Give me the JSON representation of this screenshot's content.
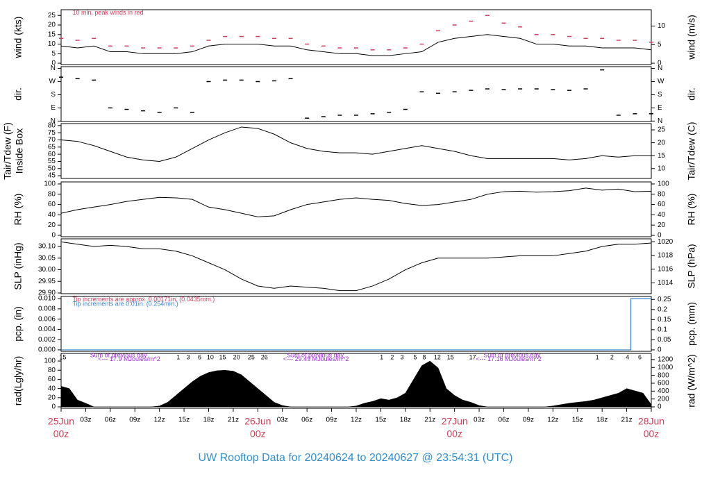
{
  "title": "UW Rooftop Data for 20240624  to  20240627 @ 23:54:31  (UTC)",
  "chart_data": [
    {
      "type": "line",
      "ylabel": [
        "wind (kts)"
      ],
      "y2label": "wind (m/s)",
      "xlim": [
        0,
        72
      ],
      "ylim": [
        -0.7,
        28
      ],
      "yticks": [
        0,
        5,
        10,
        15,
        20,
        25
      ],
      "y2lim": [
        -0.36,
        14.4
      ],
      "y2ticks": [
        0,
        5,
        10
      ],
      "x": [
        0,
        2,
        4,
        6,
        8,
        10,
        12,
        14,
        16,
        18,
        20,
        22,
        24,
        26,
        28,
        30,
        32,
        34,
        36,
        38,
        40,
        42,
        44,
        46,
        48,
        50,
        52,
        54,
        56,
        58,
        60,
        62,
        64,
        66,
        68,
        70,
        72
      ],
      "series": [
        {
          "style": "dash",
          "color": "#d04060",
          "values": [
            13,
            12,
            13,
            9,
            9,
            8,
            8,
            8,
            9,
            12,
            14,
            14,
            14,
            13,
            13,
            10,
            9,
            8,
            8,
            7,
            7,
            8,
            10,
            17,
            20,
            22,
            25,
            21,
            19,
            15,
            15,
            14,
            13,
            13,
            12,
            12,
            11
          ]
        },
        {
          "style": "line",
          "color": "#000000",
          "values": [
            9,
            8,
            9,
            6,
            6,
            5,
            5,
            5,
            6,
            9,
            10,
            10,
            10,
            9,
            9,
            7,
            6,
            5,
            5,
            4,
            4,
            5,
            6,
            11,
            13,
            14,
            15,
            14,
            13,
            10,
            10,
            9,
            9,
            8,
            8,
            8,
            7
          ]
        }
      ],
      "annotations": [
        {
          "text": "10 min. peak winds in red",
          "color": "#d04060",
          "x": 1.4,
          "y": 26.3
        }
      ]
    },
    {
      "type": "scatter",
      "ylabel": [
        "dir."
      ],
      "y2label": "dir.",
      "xlim": [
        0,
        72
      ],
      "ylim": [
        -3,
        372
      ],
      "yticks": [
        {
          "value": 0,
          "label": "N"
        },
        {
          "value": 90,
          "label": "E"
        },
        {
          "value": 180,
          "label": "S"
        },
        {
          "value": 270,
          "label": "W"
        },
        {
          "value": 360,
          "label": "N"
        }
      ],
      "y2lim": [
        -3,
        372
      ],
      "y2ticks": [
        {
          "value": 0,
          "label": "N"
        },
        {
          "value": 90,
          "label": "E"
        },
        {
          "value": 180,
          "label": "S"
        },
        {
          "value": 270,
          "label": "W"
        },
        {
          "value": 360,
          "label": "N"
        }
      ],
      "x": [
        0,
        2,
        4,
        6,
        8,
        10,
        12,
        14,
        16,
        18,
        20,
        22,
        24,
        26,
        28,
        30,
        32,
        34,
        36,
        38,
        40,
        42,
        44,
        46,
        48,
        50,
        52,
        54,
        56,
        58,
        60,
        62,
        64,
        66,
        68,
        70,
        72
      ],
      "series": [
        {
          "style": "dash",
          "color": "#000000",
          "values": [
            300,
            290,
            280,
            90,
            80,
            70,
            60,
            90,
            60,
            270,
            280,
            280,
            270,
            275,
            290,
            20,
            30,
            40,
            40,
            50,
            60,
            80,
            200,
            190,
            200,
            210,
            220,
            215,
            220,
            220,
            215,
            210,
            220,
            350,
            40,
            50,
            50
          ]
        }
      ]
    },
    {
      "type": "line",
      "ylabel": [
        "Tair/Tdew (F)",
        "Inside Box"
      ],
      "y2label": "Tair/Tdew (C)",
      "xlim": [
        0,
        72
      ],
      "ylim": [
        43.1,
        81.4
      ],
      "yticks": [
        45,
        50,
        55,
        60,
        65,
        70,
        75,
        80
      ],
      "y2lim": [
        6.17,
        27.44
      ],
      "y2ticks": [
        10,
        15,
        20,
        25
      ],
      "x": [
        0,
        2,
        4,
        6,
        8,
        10,
        12,
        14,
        16,
        18,
        20,
        22,
        24,
        26,
        28,
        30,
        32,
        34,
        36,
        38,
        40,
        42,
        44,
        46,
        48,
        50,
        52,
        54,
        56,
        58,
        60,
        62,
        64,
        66,
        68,
        70,
        72
      ],
      "series": [
        {
          "style": "line",
          "color": "#000000",
          "values": [
            70,
            69,
            66,
            62,
            58,
            56,
            55,
            58,
            64,
            70,
            75,
            79,
            78,
            74,
            68,
            64,
            62,
            61,
            61,
            60,
            62,
            64,
            66,
            64,
            62,
            59,
            57,
            57,
            57,
            57,
            57,
            56,
            57,
            59,
            58,
            59,
            59
          ]
        }
      ]
    },
    {
      "type": "line",
      "ylabel": [
        "RH (%)"
      ],
      "y2label": "RH (%)",
      "xlim": [
        0,
        72
      ],
      "ylim": [
        -2.7,
        104
      ],
      "yticks": [
        0,
        20,
        40,
        60,
        80,
        100
      ],
      "y2lim": [
        -2.7,
        104
      ],
      "y2ticks": [
        0,
        20,
        40,
        60,
        80,
        100
      ],
      "x": [
        0,
        2,
        4,
        6,
        8,
        10,
        12,
        14,
        16,
        18,
        20,
        22,
        24,
        26,
        28,
        30,
        32,
        34,
        36,
        38,
        40,
        42,
        44,
        46,
        48,
        50,
        52,
        54,
        56,
        58,
        60,
        62,
        64,
        66,
        68,
        70,
        72
      ],
      "series": [
        {
          "style": "line",
          "color": "#000000",
          "values": [
            43,
            50,
            55,
            60,
            66,
            70,
            74,
            73,
            70,
            55,
            50,
            43,
            36,
            38,
            50,
            60,
            65,
            70,
            73,
            70,
            68,
            62,
            58,
            60,
            65,
            70,
            80,
            85,
            86,
            84,
            85,
            87,
            92,
            88,
            90,
            85,
            86
          ]
        }
      ]
    },
    {
      "type": "line",
      "ylabel": [
        "SLP (inHg)"
      ],
      "y2label": "SLP (hPa)",
      "xlim": [
        0,
        72
      ],
      "ylim": [
        29.897,
        30.133
      ],
      "yticks": [
        {
          "value": 29.9,
          "label": "29.90"
        },
        29.95,
        {
          "value": 30,
          "label": "30.00"
        },
        30.05,
        {
          "value": 30.1,
          "label": "30.10"
        }
      ],
      "y2lim": [
        1012.43,
        1020.42
      ],
      "y2ticks": [
        1014,
        1016,
        1018,
        1020
      ],
      "x": [
        0,
        2,
        4,
        6,
        8,
        10,
        12,
        14,
        16,
        18,
        20,
        22,
        24,
        26,
        28,
        30,
        32,
        34,
        36,
        38,
        40,
        42,
        44,
        46,
        48,
        50,
        52,
        54,
        56,
        58,
        60,
        62,
        64,
        66,
        68,
        70,
        72
      ],
      "series": [
        {
          "style": "line",
          "color": "#000000",
          "values": [
            30.12,
            30.11,
            30.1,
            30.105,
            30.1,
            30.09,
            30.09,
            30.08,
            30.06,
            30.03,
            30,
            29.96,
            29.93,
            29.92,
            29.93,
            29.925,
            29.92,
            29.91,
            29.91,
            29.93,
            29.96,
            30,
            30.03,
            30.05,
            30.05,
            30.05,
            30.05,
            30.055,
            30.06,
            30.06,
            30.06,
            30.07,
            30.08,
            30.1,
            30.11,
            30.11,
            30.115
          ]
        }
      ]
    },
    {
      "type": "step",
      "ylabel": [
        "pcp. (in)"
      ],
      "y2label": "pcp. (mm)",
      "xlim": [
        0,
        72
      ],
      "ylim": [
        -0.00028,
        0.01042
      ],
      "yticks": [
        {
          "value": 0,
          "label": "0.000"
        },
        0.002,
        0.004,
        0.006,
        0.008,
        {
          "value": 0.01,
          "label": "0.010"
        }
      ],
      "y2lim": [
        -0.0071,
        0.2647
      ],
      "y2ticks": [
        0,
        0.05,
        0.1,
        0.15,
        0.2,
        0.25
      ],
      "x": [
        0,
        69.5,
        72
      ],
      "series": [
        {
          "style": "line",
          "color": "#3a85cf",
          "values": [
            0,
            0.01,
            0.01
          ]
        }
      ],
      "annotations": [
        {
          "text": "Tip increments are approx. 0.00171in. (0.0435mm.)",
          "color": "#d04060",
          "x": 1.4,
          "y": 0.0098
        },
        {
          "text": "Tip increments are 0.01in. (0.254mm.)",
          "color": "#3a85cf",
          "x": 1.4,
          "y": 0.0089
        }
      ]
    },
    {
      "type": "area",
      "ylabel": [
        "rad(Lgly/hr)"
      ],
      "y2label": "rad (W/m^2)",
      "xlim": [
        0,
        72
      ],
      "ylim": [
        -3,
        116.7
      ],
      "yticks": [
        0,
        20,
        40,
        60,
        80,
        100
      ],
      "y2lim": [
        -34.9,
        1357
      ],
      "y2ticks": [
        0,
        200,
        400,
        600,
        800,
        1000,
        1200
      ],
      "x": [
        0,
        1,
        2,
        3,
        4,
        5,
        6,
        7,
        8,
        9,
        10,
        11,
        12,
        13,
        14,
        15,
        16,
        17,
        18,
        19,
        20,
        21,
        22,
        23,
        24,
        25,
        26,
        27,
        28,
        29,
        30,
        31,
        32,
        33,
        34,
        35,
        36,
        37,
        38,
        39,
        40,
        41,
        42,
        43,
        44,
        45,
        46,
        47,
        48,
        49,
        50,
        51,
        52,
        53,
        54,
        55,
        56,
        57,
        58,
        59,
        60,
        61,
        62,
        63,
        64,
        65,
        66,
        67,
        68,
        69,
        70,
        71,
        72
      ],
      "series": [
        {
          "style": "line",
          "color": "#000000",
          "values": [
            45,
            40,
            15,
            8,
            0,
            0,
            0,
            0,
            0,
            0,
            0,
            0,
            2,
            10,
            25,
            40,
            55,
            67,
            75,
            79,
            80,
            78,
            70,
            55,
            40,
            25,
            10,
            3,
            0,
            0,
            0,
            0,
            0,
            0,
            0,
            0,
            2,
            8,
            12,
            18,
            15,
            20,
            30,
            60,
            90,
            100,
            85,
            40,
            25,
            15,
            10,
            3,
            0,
            0,
            0,
            0,
            0,
            0,
            0,
            0,
            2,
            5,
            8,
            10,
            12,
            15,
            20,
            25,
            30,
            40,
            35,
            30,
            5
          ]
        }
      ],
      "annotations": [
        {
          "text": "Sum of previous day",
          "color": "#9932cc",
          "x": 7.0,
          "y": 112
        },
        {
          "text": "<--- 17.9 MJoules/m^2",
          "color": "#9932cc",
          "x": 8.3,
          "y": 104
        },
        {
          "text": "Sum of previous day",
          "color": "#9932cc",
          "x": 31.0,
          "y": 112
        },
        {
          "text": "<--- 29.49 MJoules/m^2",
          "color": "#9932cc",
          "x": 31.1,
          "y": 104
        },
        {
          "text": "Sum of previous day",
          "color": "#9932cc",
          "x": 55.0,
          "y": 112
        },
        {
          "text": "<--- 17.16 MJoules/m^2",
          "color": "#9932cc",
          "x": 54.6,
          "y": 104
        }
      ],
      "hour_marks": [
        {
          "x": 0.2,
          "text": "15"
        },
        {
          "x": 14.3,
          "text": "1"
        },
        {
          "x": 15.5,
          "text": "3"
        },
        {
          "x": 16.9,
          "text": "6"
        },
        {
          "x": 18.2,
          "text": "10"
        },
        {
          "x": 19.7,
          "text": "15"
        },
        {
          "x": 21.4,
          "text": "20"
        },
        {
          "x": 23.2,
          "text": "25"
        },
        {
          "x": 24.8,
          "text": "26"
        },
        {
          "x": 39.1,
          "text": "1"
        },
        {
          "x": 40.4,
          "text": "2"
        },
        {
          "x": 41.6,
          "text": "3"
        },
        {
          "x": 43.2,
          "text": "5"
        },
        {
          "x": 44.3,
          "text": "8"
        },
        {
          "x": 45.9,
          "text": "12"
        },
        {
          "x": 47.5,
          "text": "15"
        },
        {
          "x": 50.2,
          "text": "17"
        },
        {
          "x": 65.4,
          "text": "1"
        },
        {
          "x": 67.2,
          "text": "2"
        },
        {
          "x": 69.1,
          "text": "4"
        },
        {
          "x": 70.6,
          "text": "6"
        }
      ],
      "xticks": [
        {
          "value": 0,
          "label": "00z"
        },
        {
          "value": 3,
          "label": "03z"
        },
        {
          "value": 6,
          "label": "06z"
        },
        {
          "value": 9,
          "label": "09z"
        },
        {
          "value": 12,
          "label": "12z"
        },
        {
          "value": 15,
          "label": "15z"
        },
        {
          "value": 18,
          "label": "18z"
        },
        {
          "value": 21,
          "label": "21z"
        },
        {
          "value": 24,
          "label": "00z"
        },
        {
          "value": 27,
          "label": "03z"
        },
        {
          "value": 30,
          "label": "06z"
        },
        {
          "value": 33,
          "label": "09z"
        },
        {
          "value": 36,
          "label": "12z"
        },
        {
          "value": 39,
          "label": "15z"
        },
        {
          "value": 42,
          "label": "18z"
        },
        {
          "value": 45,
          "label": "21z"
        },
        {
          "value": 48,
          "label": "00z"
        },
        {
          "value": 51,
          "label": "03z"
        },
        {
          "value": 54,
          "label": "06z"
        },
        {
          "value": 57,
          "label": "09z"
        },
        {
          "value": 60,
          "label": "12z"
        },
        {
          "value": 63,
          "label": "15z"
        },
        {
          "value": 66,
          "label": "18z"
        },
        {
          "value": 69,
          "label": "21z"
        },
        {
          "value": 72,
          "label": "00z"
        }
      ],
      "day_labels": [
        {
          "value": 0,
          "label": "25Jun"
        },
        {
          "value": 24,
          "label": "26Jun"
        },
        {
          "value": 48,
          "label": "27Jun"
        },
        {
          "value": 72,
          "label": "28Jun"
        }
      ]
    }
  ]
}
